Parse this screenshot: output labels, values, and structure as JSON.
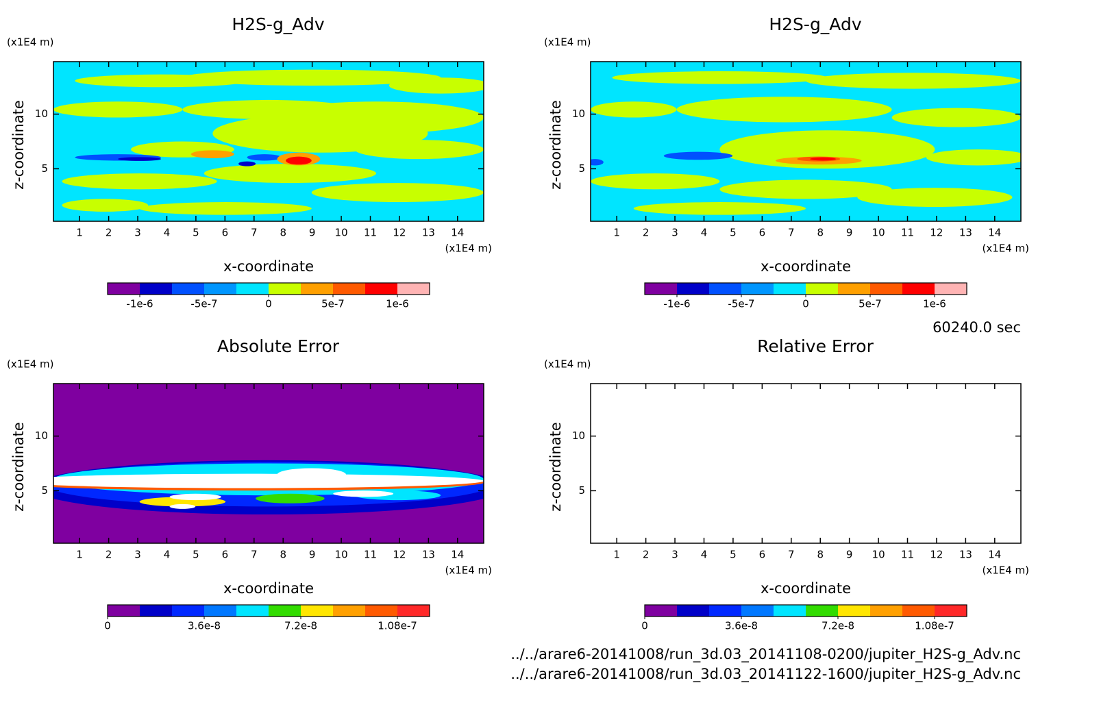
{
  "chart_data": [
    {
      "type": "contour",
      "title": "H2S-g_Adv",
      "xlabel": "x-coordinate",
      "ylabel": "z-coordinate",
      "xunit": "(x1E4 m)",
      "yunit": "(x1E4 m)",
      "xlim": [
        0.1,
        14.9
      ],
      "ylim": [
        0.2,
        14.8
      ],
      "xticks": [
        1,
        2,
        3,
        4,
        5,
        6,
        7,
        8,
        9,
        10,
        11,
        12,
        13,
        14
      ],
      "yticks": [
        5,
        10
      ],
      "colorbar": {
        "lim": [
          -1.25e-06,
          1.25e-06
        ],
        "colors": [
          "#7f00a0",
          "#0000c8",
          "#0050ff",
          "#0096ff",
          "#00e5ff",
          "#c8ff00",
          "#ffa000",
          "#ff5a00",
          "#ff0000",
          "#ffb4b4"
        ],
        "ticks": [
          {
            "value": -1e-06,
            "label": "-1e-6"
          },
          {
            "value": -5e-07,
            "label": "-5e-7"
          },
          0,
          {
            "value": 5e-07,
            "label": "5e-7"
          },
          {
            "value": 1e-06,
            "label": "1e-6"
          }
        ]
      }
    },
    {
      "type": "contour",
      "title": "H2S-g_Adv",
      "xlabel": "x-coordinate",
      "ylabel": "z-coordinate",
      "xunit": "(x1E4 m)",
      "yunit": "(x1E4 m)",
      "xlim": [
        0.1,
        14.9
      ],
      "ylim": [
        0.2,
        14.8
      ],
      "xticks": [
        1,
        2,
        3,
        4,
        5,
        6,
        7,
        8,
        9,
        10,
        11,
        12,
        13,
        14
      ],
      "yticks": [
        5,
        10
      ],
      "colorbar": {
        "lim": [
          -1.25e-06,
          1.25e-06
        ],
        "colors": [
          "#7f00a0",
          "#0000c8",
          "#0050ff",
          "#0096ff",
          "#00e5ff",
          "#c8ff00",
          "#ffa000",
          "#ff5a00",
          "#ff0000",
          "#ffb4b4"
        ],
        "ticks": [
          {
            "value": -1e-06,
            "label": "-1e-6"
          },
          {
            "value": -5e-07,
            "label": "-5e-7"
          },
          0,
          {
            "value": 5e-07,
            "label": "5e-7"
          },
          {
            "value": 1e-06,
            "label": "1e-6"
          }
        ]
      }
    },
    {
      "type": "contour",
      "title": "Absolute Error",
      "xlabel": "x-coordinate",
      "ylabel": "z-coordinate",
      "xunit": "(x1E4 m)",
      "yunit": "(x1E4 m)",
      "xlim": [
        0.1,
        14.9
      ],
      "ylim": [
        0.2,
        14.8
      ],
      "xticks": [
        1,
        2,
        3,
        4,
        5,
        6,
        7,
        8,
        9,
        10,
        11,
        12,
        13,
        14
      ],
      "yticks": [
        5,
        10
      ],
      "colorbar": {
        "lim": [
          0,
          1.2e-07
        ],
        "colors": [
          "#7f00a0",
          "#0000c8",
          "#0028ff",
          "#0078ff",
          "#00e5ff",
          "#32dc00",
          "#ffe600",
          "#ffa000",
          "#ff5a00",
          "#ff2828"
        ],
        "ticks": [
          0,
          {
            "value": 3.6e-08,
            "label": "3.6e-8"
          },
          {
            "value": 7.2e-08,
            "label": "7.2e-8"
          },
          {
            "value": 1.08e-07,
            "label": "1.08e-7"
          }
        ]
      }
    },
    {
      "type": "contour",
      "title": "Relative Error",
      "xlabel": "x-coordinate",
      "ylabel": "z-coordinate",
      "xunit": "(x1E4 m)",
      "yunit": "(x1E4 m)",
      "xlim": [
        0.1,
        14.9
      ],
      "ylim": [
        0.2,
        14.8
      ],
      "xticks": [
        1,
        2,
        3,
        4,
        5,
        6,
        7,
        8,
        9,
        10,
        11,
        12,
        13,
        14
      ],
      "yticks": [
        5,
        10
      ],
      "colorbar": {
        "lim": [
          0,
          1.2e-07
        ],
        "colors": [
          "#7f00a0",
          "#0000c8",
          "#0028ff",
          "#0078ff",
          "#00e5ff",
          "#32dc00",
          "#ffe600",
          "#ffa000",
          "#ff5a00",
          "#ff2828"
        ],
        "ticks": [
          0,
          {
            "value": 3.6e-08,
            "label": "3.6e-8"
          },
          {
            "value": 7.2e-08,
            "label": "7.2e-8"
          },
          {
            "value": 1.08e-07,
            "label": "1.08e-7"
          }
        ]
      }
    }
  ],
  "time_label": "60240.0 sec",
  "files": [
    "../../arare6-20141008/run_3d.03_20141108-0200/jupiter_H2S-g_Adv.nc",
    "../../arare6-20141008/run_3d.03_20141122-1600/jupiter_H2S-g_Adv.nc"
  ]
}
